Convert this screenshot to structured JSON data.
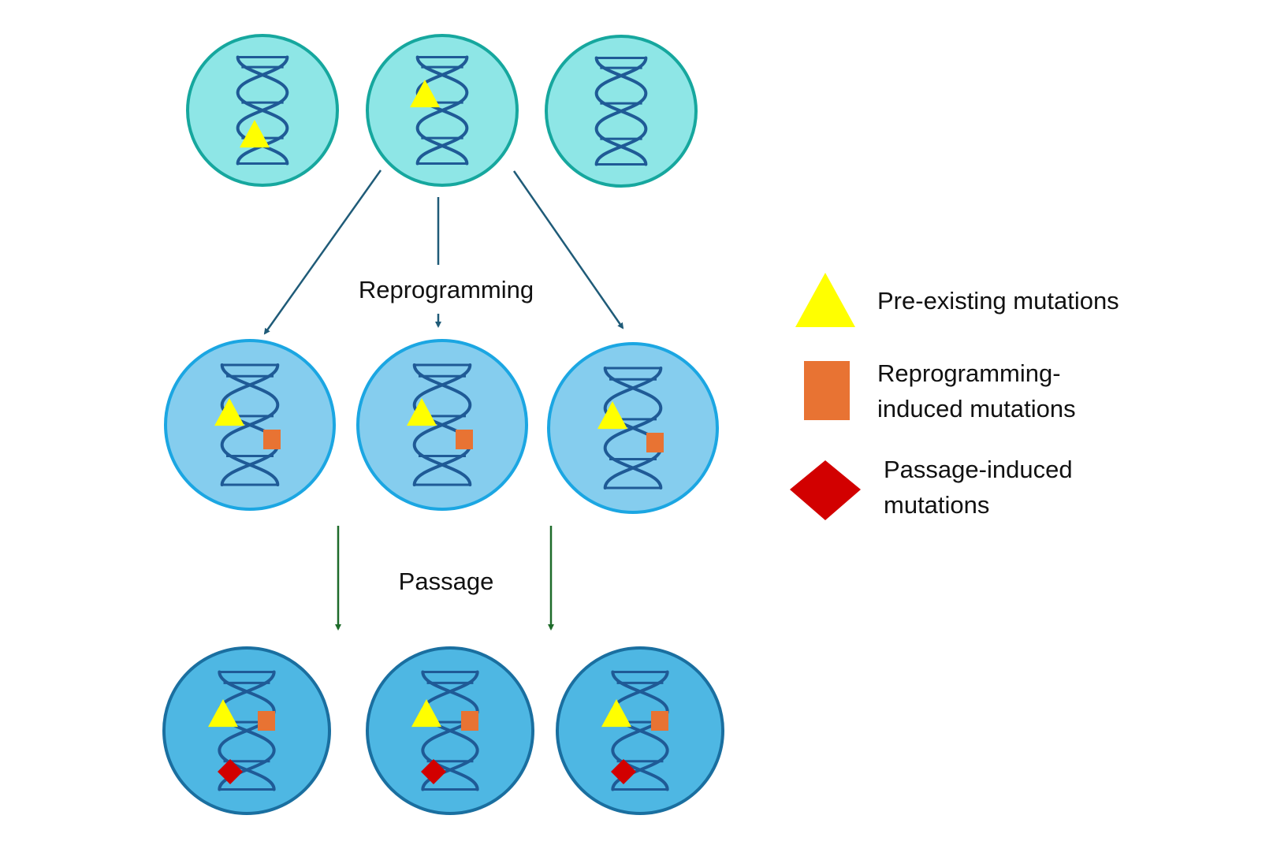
{
  "labels": {
    "reprogramming": "Reprogramming",
    "passage": "Passage"
  },
  "legend": {
    "pre_existing": {
      "line1": "Pre-existing mutations",
      "shape": "triangle"
    },
    "reprogramming_induced": {
      "line1": "Reprogramming-",
      "line2": "induced mutations",
      "shape": "square"
    },
    "passage_induced": {
      "line1": "Passage-induced",
      "line2": "mutations",
      "shape": "diamond"
    }
  },
  "cell_rows": [
    {
      "name": "somatic-cells",
      "count": 3,
      "fill": "#8ee6e6",
      "stroke": "#16a79e",
      "mutations": [
        [
          "triangle"
        ],
        [
          "triangle"
        ],
        []
      ]
    },
    {
      "name": "reprogrammed-ipsc",
      "count": 3,
      "fill": "#85cdee",
      "stroke": "#1ba6e2",
      "mutations": [
        [
          "triangle",
          "square"
        ],
        [
          "triangle",
          "square"
        ],
        [
          "triangle",
          "square"
        ]
      ]
    },
    {
      "name": "passaged-ipsc",
      "count": 3,
      "fill": "#4eb7e3",
      "stroke": "#1a6fa0",
      "mutations": [
        [
          "triangle",
          "square",
          "diamond"
        ],
        [
          "triangle",
          "square",
          "diamond"
        ],
        [
          "triangle",
          "square",
          "diamond"
        ]
      ]
    }
  ],
  "colors": {
    "dna": "#1f5a96",
    "pre_existing": "#ffff00",
    "reprogramming_induced": "#e87333",
    "passage_induced": "#d20000",
    "reprogramming_arrow": "#1f5b78",
    "passage_arrow": "#1e6b2a"
  },
  "icons": [
    "dna-helix-icon",
    "triangle-icon",
    "square-icon",
    "diamond-icon",
    "arrow-icon"
  ]
}
